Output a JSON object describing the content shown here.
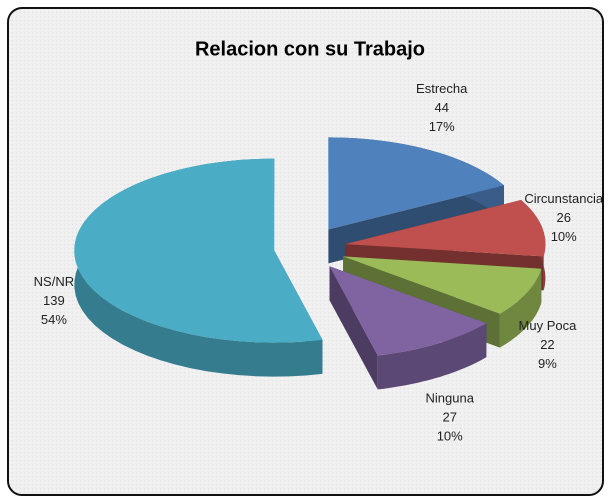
{
  "chart_data": {
    "type": "pie",
    "title": "Relacion con su Trabajo",
    "categories": [
      "Estrecha",
      "Circunstancia",
      "Muy Poca",
      "Ninguna",
      "NS/NR"
    ],
    "values": [
      44,
      26,
      22,
      27,
      139
    ],
    "percent_labels": [
      "17%",
      "10%",
      "9%",
      "10%",
      "54%"
    ],
    "colors": [
      "#4f81bd",
      "#c0504d",
      "#9bbb59",
      "#8064a2",
      "#4bacc6"
    ],
    "three_d": true,
    "exploded": true
  }
}
